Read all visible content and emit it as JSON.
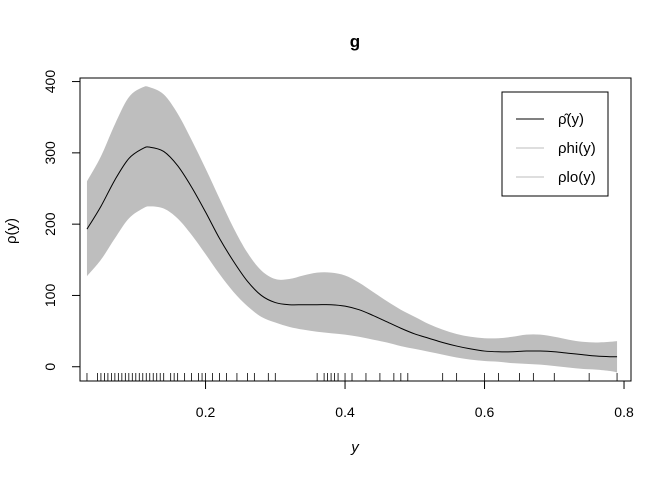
{
  "chart_data": {
    "type": "line",
    "title": "g",
    "xlabel": "y",
    "ylabel": "ρ(y)",
    "xlim": [
      0.02,
      0.81
    ],
    "ylim": [
      -20,
      405
    ],
    "xticks": [
      0.2,
      0.4,
      0.6,
      0.8
    ],
    "xtick_labels": [
      "0.2",
      "0.4",
      "0.6",
      "0.8"
    ],
    "yticks": [
      0,
      100,
      200,
      300,
      400
    ],
    "ytick_labels": [
      "0",
      "100",
      "200",
      "300",
      "400"
    ],
    "grid": false,
    "legend_position": "top-right",
    "legend": [
      {
        "label": "ρ̂(y)",
        "color": "#000000"
      },
      {
        "label": "ρhi(y)",
        "color": "#bebebe"
      },
      {
        "label": "ρlo(y)",
        "color": "#bebebe"
      }
    ],
    "series": [
      {
        "name": "ρ̂(y)",
        "color": "#000000",
        "x": [
          0.03,
          0.05,
          0.07,
          0.09,
          0.11,
          0.12,
          0.14,
          0.16,
          0.18,
          0.2,
          0.22,
          0.24,
          0.26,
          0.28,
          0.3,
          0.32,
          0.34,
          0.36,
          0.38,
          0.4,
          0.42,
          0.44,
          0.46,
          0.48,
          0.5,
          0.52,
          0.54,
          0.56,
          0.58,
          0.6,
          0.62,
          0.64,
          0.66,
          0.68,
          0.7,
          0.72,
          0.74,
          0.76,
          0.78,
          0.79
        ],
        "values": [
          193,
          225,
          262,
          292,
          306,
          308,
          302,
          282,
          252,
          217,
          180,
          148,
          120,
          100,
          90,
          87,
          87,
          87,
          87,
          85,
          80,
          72,
          63,
          54,
          46,
          40,
          34,
          29,
          25,
          22,
          21,
          21,
          22,
          22,
          21,
          19,
          17,
          15,
          14,
          14
        ]
      },
      {
        "name": "ρhi(y)",
        "color": "#bebebe",
        "x": [
          0.03,
          0.05,
          0.07,
          0.09,
          0.11,
          0.12,
          0.14,
          0.16,
          0.18,
          0.2,
          0.22,
          0.24,
          0.26,
          0.28,
          0.3,
          0.32,
          0.34,
          0.36,
          0.38,
          0.4,
          0.42,
          0.44,
          0.46,
          0.48,
          0.5,
          0.52,
          0.54,
          0.56,
          0.58,
          0.6,
          0.62,
          0.64,
          0.66,
          0.68,
          0.7,
          0.72,
          0.74,
          0.76,
          0.78,
          0.79
        ],
        "values": [
          260,
          295,
          340,
          378,
          392,
          392,
          382,
          355,
          318,
          278,
          236,
          195,
          160,
          135,
          123,
          123,
          128,
          132,
          132,
          128,
          118,
          105,
          92,
          80,
          70,
          60,
          52,
          46,
          42,
          40,
          40,
          42,
          45,
          45,
          42,
          38,
          35,
          34,
          35,
          36
        ]
      },
      {
        "name": "ρlo(y)",
        "color": "#bebebe",
        "x": [
          0.03,
          0.05,
          0.07,
          0.09,
          0.11,
          0.12,
          0.14,
          0.16,
          0.18,
          0.2,
          0.22,
          0.24,
          0.26,
          0.28,
          0.3,
          0.32,
          0.34,
          0.36,
          0.38,
          0.4,
          0.42,
          0.44,
          0.46,
          0.48,
          0.5,
          0.52,
          0.54,
          0.56,
          0.58,
          0.6,
          0.62,
          0.64,
          0.66,
          0.68,
          0.7,
          0.72,
          0.74,
          0.76,
          0.78,
          0.79
        ],
        "values": [
          127,
          150,
          180,
          208,
          222,
          225,
          222,
          208,
          185,
          158,
          130,
          105,
          85,
          70,
          62,
          56,
          52,
          49,
          47,
          45,
          42,
          38,
          34,
          29,
          25,
          21,
          17,
          13,
          10,
          8,
          7,
          5,
          4,
          3,
          1,
          -1,
          -3,
          -4,
          -6,
          -8
        ]
      }
    ],
    "rug": [
      0.03,
      0.045,
      0.05,
      0.055,
      0.06,
      0.065,
      0.07,
      0.075,
      0.08,
      0.085,
      0.09,
      0.095,
      0.1,
      0.105,
      0.11,
      0.115,
      0.12,
      0.125,
      0.13,
      0.135,
      0.14,
      0.15,
      0.155,
      0.16,
      0.17,
      0.18,
      0.19,
      0.195,
      0.2,
      0.21,
      0.22,
      0.23,
      0.245,
      0.26,
      0.27,
      0.29,
      0.3,
      0.36,
      0.37,
      0.375,
      0.38,
      0.385,
      0.39,
      0.4,
      0.41,
      0.43,
      0.45,
      0.47,
      0.48,
      0.49,
      0.54,
      0.56,
      0.6,
      0.62,
      0.65,
      0.67,
      0.7,
      0.75,
      0.79
    ]
  }
}
